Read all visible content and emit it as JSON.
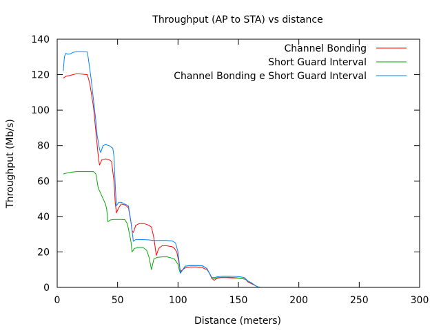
{
  "chart_data": {
    "type": "line",
    "title": "Throughput (AP to STA) vs distance",
    "xlabel": "Distance (meters)",
    "ylabel": "Throughput (Mb/s)",
    "xlim": [
      0,
      300
    ],
    "ylim": [
      0,
      140
    ],
    "xticks": [
      0,
      50,
      100,
      150,
      200,
      250,
      300
    ],
    "yticks": [
      0,
      20,
      40,
      60,
      80,
      100,
      120,
      140
    ],
    "grid": false,
    "legend_position": "top-right",
    "series": [
      {
        "name": "Channel Bonding",
        "color": "#ff0000",
        "points": [
          [
            5,
            118
          ],
          [
            7,
            119
          ],
          [
            10,
            119.5
          ],
          [
            13,
            120
          ],
          [
            16,
            120.5
          ],
          [
            20,
            120.3
          ],
          [
            25,
            120
          ],
          [
            27,
            115
          ],
          [
            30,
            102
          ],
          [
            32,
            88
          ],
          [
            34,
            74
          ],
          [
            35,
            69
          ],
          [
            37,
            72
          ],
          [
            40,
            72.5
          ],
          [
            43,
            72
          ],
          [
            45,
            71
          ],
          [
            47,
            60
          ],
          [
            48,
            48
          ],
          [
            49,
            42
          ],
          [
            51,
            45
          ],
          [
            53,
            47
          ],
          [
            56,
            46.5
          ],
          [
            59,
            45
          ],
          [
            61,
            37
          ],
          [
            62,
            32
          ],
          [
            63,
            31
          ],
          [
            65,
            35
          ],
          [
            68,
            36
          ],
          [
            72,
            36
          ],
          [
            76,
            35
          ],
          [
            78,
            34
          ],
          [
            80,
            28
          ],
          [
            82,
            18
          ],
          [
            84,
            22
          ],
          [
            87,
            23.5
          ],
          [
            90,
            23.5
          ],
          [
            95,
            23
          ],
          [
            97,
            22
          ],
          [
            99,
            20
          ],
          [
            101,
            13
          ],
          [
            102,
            9
          ],
          [
            104,
            10
          ],
          [
            106,
            11
          ],
          [
            110,
            11.5
          ],
          [
            115,
            11.5
          ],
          [
            120,
            11.3
          ],
          [
            122,
            10.5
          ],
          [
            124,
            10
          ],
          [
            126,
            8
          ],
          [
            128,
            5
          ],
          [
            130,
            4
          ],
          [
            132,
            5
          ],
          [
            135,
            5.5
          ],
          [
            140,
            5.5
          ],
          [
            145,
            5.3
          ],
          [
            150,
            5.2
          ],
          [
            153,
            5
          ],
          [
            156,
            4.5
          ],
          [
            158,
            3
          ],
          [
            161,
            2
          ],
          [
            164,
            1
          ],
          [
            166,
            0.3
          ],
          [
            168,
            0
          ]
        ]
      },
      {
        "name": "Short Guard Interval",
        "color": "#00aa00",
        "points": [
          [
            5,
            64
          ],
          [
            8,
            64.5
          ],
          [
            12,
            65
          ],
          [
            16,
            65.3
          ],
          [
            20,
            65.3
          ],
          [
            25,
            65.3
          ],
          [
            28,
            65.3
          ],
          [
            30,
            65.3
          ],
          [
            32,
            64
          ],
          [
            34,
            56
          ],
          [
            36,
            53
          ],
          [
            38,
            50
          ],
          [
            40,
            47
          ],
          [
            41,
            44
          ],
          [
            42,
            37
          ],
          [
            44,
            38
          ],
          [
            47,
            38.3
          ],
          [
            52,
            38.3
          ],
          [
            56,
            38.2
          ],
          [
            58,
            36
          ],
          [
            59,
            33
          ],
          [
            61,
            26
          ],
          [
            62,
            20
          ],
          [
            64,
            22
          ],
          [
            67,
            22.5
          ],
          [
            71,
            22.5
          ],
          [
            74,
            21
          ],
          [
            76,
            17
          ],
          [
            78,
            10
          ],
          [
            80,
            16
          ],
          [
            83,
            17
          ],
          [
            87,
            17.2
          ],
          [
            91,
            17.2
          ],
          [
            95,
            16.5
          ],
          [
            97,
            16
          ],
          [
            100,
            13
          ],
          [
            101,
            10
          ],
          [
            102,
            8
          ],
          [
            104,
            10
          ],
          [
            106,
            12
          ],
          [
            110,
            12.3
          ],
          [
            115,
            12.3
          ],
          [
            120,
            12.2
          ],
          [
            122,
            11.5
          ],
          [
            124,
            10.5
          ],
          [
            126,
            8
          ],
          [
            128,
            5.5
          ],
          [
            130,
            5
          ],
          [
            133,
            5.5
          ],
          [
            137,
            5.7
          ],
          [
            142,
            5.7
          ],
          [
            147,
            5.5
          ],
          [
            152,
            5.2
          ],
          [
            155,
            4.8
          ],
          [
            158,
            3.5
          ],
          [
            161,
            2.5
          ],
          [
            164,
            1
          ],
          [
            166,
            0.3
          ],
          [
            168,
            0
          ]
        ]
      },
      {
        "name": "Channel Bonding e Short Guard Interval",
        "color": "#0080ff",
        "points": [
          [
            5,
            122
          ],
          [
            6,
            130
          ],
          [
            7,
            132
          ],
          [
            9,
            131.5
          ],
          [
            11,
            131.8
          ],
          [
            13,
            132.5
          ],
          [
            16,
            133
          ],
          [
            19,
            133
          ],
          [
            22,
            133
          ],
          [
            25,
            132.8
          ],
          [
            26,
            128
          ],
          [
            28,
            118
          ],
          [
            30,
            106
          ],
          [
            32,
            94
          ],
          [
            33,
            86
          ],
          [
            35,
            78
          ],
          [
            36,
            76
          ],
          [
            38,
            80
          ],
          [
            40,
            80.5
          ],
          [
            43,
            80
          ],
          [
            46,
            78.5
          ],
          [
            47,
            74
          ],
          [
            48,
            58
          ],
          [
            49,
            46
          ],
          [
            51,
            48
          ],
          [
            53,
            48
          ],
          [
            56,
            47
          ],
          [
            59,
            46
          ],
          [
            61,
            37
          ],
          [
            62,
            32
          ],
          [
            63,
            26
          ],
          [
            65,
            27
          ],
          [
            70,
            27
          ],
          [
            75,
            26.8
          ],
          [
            80,
            26.5
          ],
          [
            84,
            26.5
          ],
          [
            90,
            26.5
          ],
          [
            95,
            26.3
          ],
          [
            98,
            25
          ],
          [
            100,
            20
          ],
          [
            101,
            14
          ],
          [
            102,
            8
          ],
          [
            104,
            10
          ],
          [
            106,
            12
          ],
          [
            110,
            12.3
          ],
          [
            115,
            12.3
          ],
          [
            120,
            12.2
          ],
          [
            122,
            11.5
          ],
          [
            124,
            10.5
          ],
          [
            126,
            8
          ],
          [
            128,
            5.5
          ],
          [
            130,
            5.5
          ],
          [
            133,
            6
          ],
          [
            137,
            6.3
          ],
          [
            142,
            6.3
          ],
          [
            147,
            6.2
          ],
          [
            151,
            6
          ],
          [
            155,
            5.5
          ],
          [
            158,
            3.5
          ],
          [
            161,
            2.5
          ],
          [
            164,
            1
          ],
          [
            166,
            0.3
          ],
          [
            168,
            0
          ]
        ]
      }
    ]
  }
}
